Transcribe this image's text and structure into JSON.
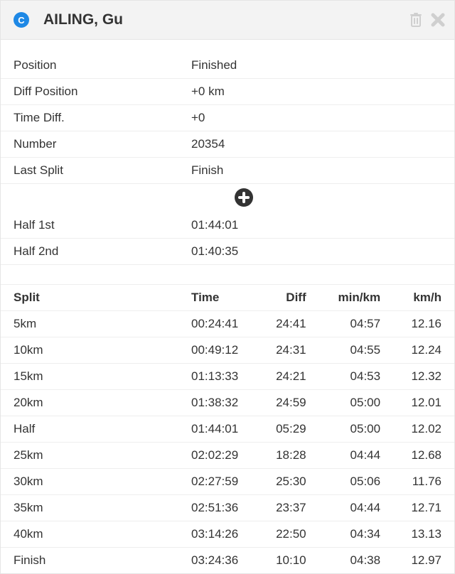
{
  "header": {
    "badge_letter": "C",
    "title": "AILING, Gu"
  },
  "info": {
    "rows": [
      {
        "label": "Position",
        "value": "Finished"
      },
      {
        "label": "Diff Position",
        "value": "+0 km"
      },
      {
        "label": "Time Diff.",
        "value": "+0"
      },
      {
        "label": "Number",
        "value": "20354"
      },
      {
        "label": "Last Split",
        "value": "Finish"
      }
    ],
    "half_rows": [
      {
        "label": "Half 1st",
        "value": "01:44:01"
      },
      {
        "label": "Half 2nd",
        "value": "01:40:35"
      }
    ]
  },
  "splits": {
    "columns": [
      "Split",
      "Time",
      "Diff",
      "min/km",
      "km/h"
    ],
    "rows": [
      {
        "split": "5km",
        "time": "00:24:41",
        "diff": "24:41",
        "pace": "04:57",
        "speed": "12.16"
      },
      {
        "split": "10km",
        "time": "00:49:12",
        "diff": "24:31",
        "pace": "04:55",
        "speed": "12.24"
      },
      {
        "split": "15km",
        "time": "01:13:33",
        "diff": "24:21",
        "pace": "04:53",
        "speed": "12.32"
      },
      {
        "split": "20km",
        "time": "01:38:32",
        "diff": "24:59",
        "pace": "05:00",
        "speed": "12.01"
      },
      {
        "split": "Half",
        "time": "01:44:01",
        "diff": "05:29",
        "pace": "05:00",
        "speed": "12.02"
      },
      {
        "split": "25km",
        "time": "02:02:29",
        "diff": "18:28",
        "pace": "04:44",
        "speed": "12.68"
      },
      {
        "split": "30km",
        "time": "02:27:59",
        "diff": "25:30",
        "pace": "05:06",
        "speed": "11.76"
      },
      {
        "split": "35km",
        "time": "02:51:36",
        "diff": "23:37",
        "pace": "04:44",
        "speed": "12.71"
      },
      {
        "split": "40km",
        "time": "03:14:26",
        "diff": "22:50",
        "pace": "04:34",
        "speed": "13.13"
      },
      {
        "split": "Finish",
        "time": "03:24:36",
        "diff": "10:10",
        "pace": "04:38",
        "speed": "12.97"
      }
    ]
  },
  "colors": {
    "badge_bg": "#1e88e5",
    "header_bg": "#f3f3f3",
    "border": "#e5e5e5",
    "icon_muted": "#cfcfcf",
    "text": "#333333"
  }
}
